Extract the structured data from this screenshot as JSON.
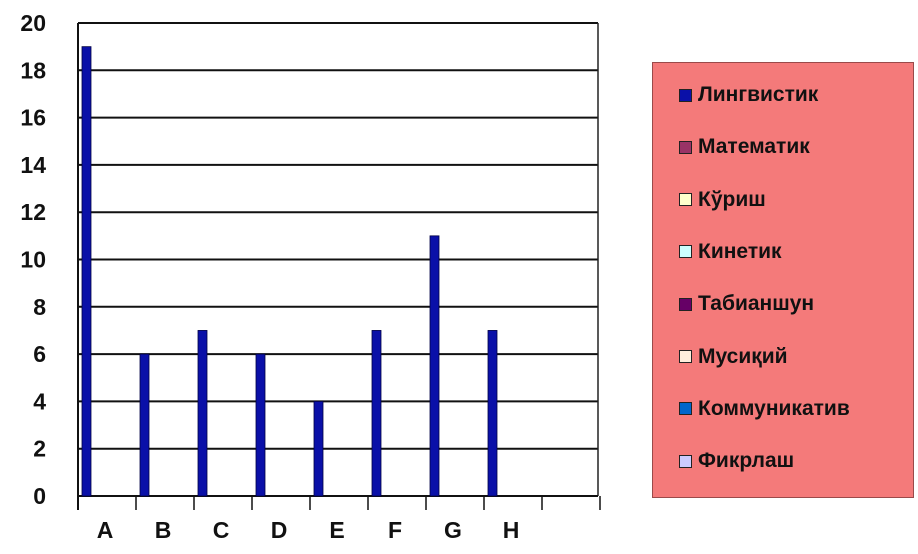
{
  "chart_data": {
    "type": "bar",
    "categories": [
      "A",
      "B",
      "C",
      "D",
      "E",
      "F",
      "G",
      "H"
    ],
    "series": [
      {
        "name": "Лингвистик",
        "color": "#0a10a8",
        "values": [
          19,
          6,
          7,
          6,
          4,
          7,
          11,
          7
        ]
      },
      {
        "name": "Математик",
        "color": "#993366",
        "values": [
          0,
          0,
          0,
          0,
          0,
          0,
          0,
          0
        ]
      },
      {
        "name": "Кўриш",
        "color": "#ffffcc",
        "values": [
          0,
          0,
          0,
          0,
          0,
          0,
          0,
          0
        ]
      },
      {
        "name": "Кинетик",
        "color": "#ccffff",
        "values": [
          0,
          0,
          0,
          0,
          0,
          0,
          0,
          0
        ]
      },
      {
        "name": "Табианшун",
        "color": "#660066",
        "values": [
          0,
          0,
          0,
          0,
          0,
          0,
          0,
          0
        ]
      },
      {
        "name": "Мусиқий",
        "color": "#ffeedd",
        "values": [
          0,
          0,
          0,
          0,
          0,
          0,
          0,
          0
        ]
      },
      {
        "name": "Коммуникатив",
        "color": "#0066cc",
        "values": [
          0,
          0,
          0,
          0,
          0,
          0,
          0,
          0
        ]
      },
      {
        "name": "Фикрлаш",
        "color": "#ccccff",
        "values": [
          0,
          0,
          0,
          0,
          0,
          0,
          0,
          0
        ]
      }
    ],
    "y_ticks": [
      "0",
      "2",
      "4",
      "6",
      "8",
      "10",
      "12",
      "14",
      "16",
      "18",
      "20"
    ],
    "ylim": [
      0,
      20
    ],
    "grid": true,
    "legend_position": "right",
    "legend_background": "#f47a7a",
    "title": "",
    "xlabel": "",
    "ylabel": ""
  }
}
